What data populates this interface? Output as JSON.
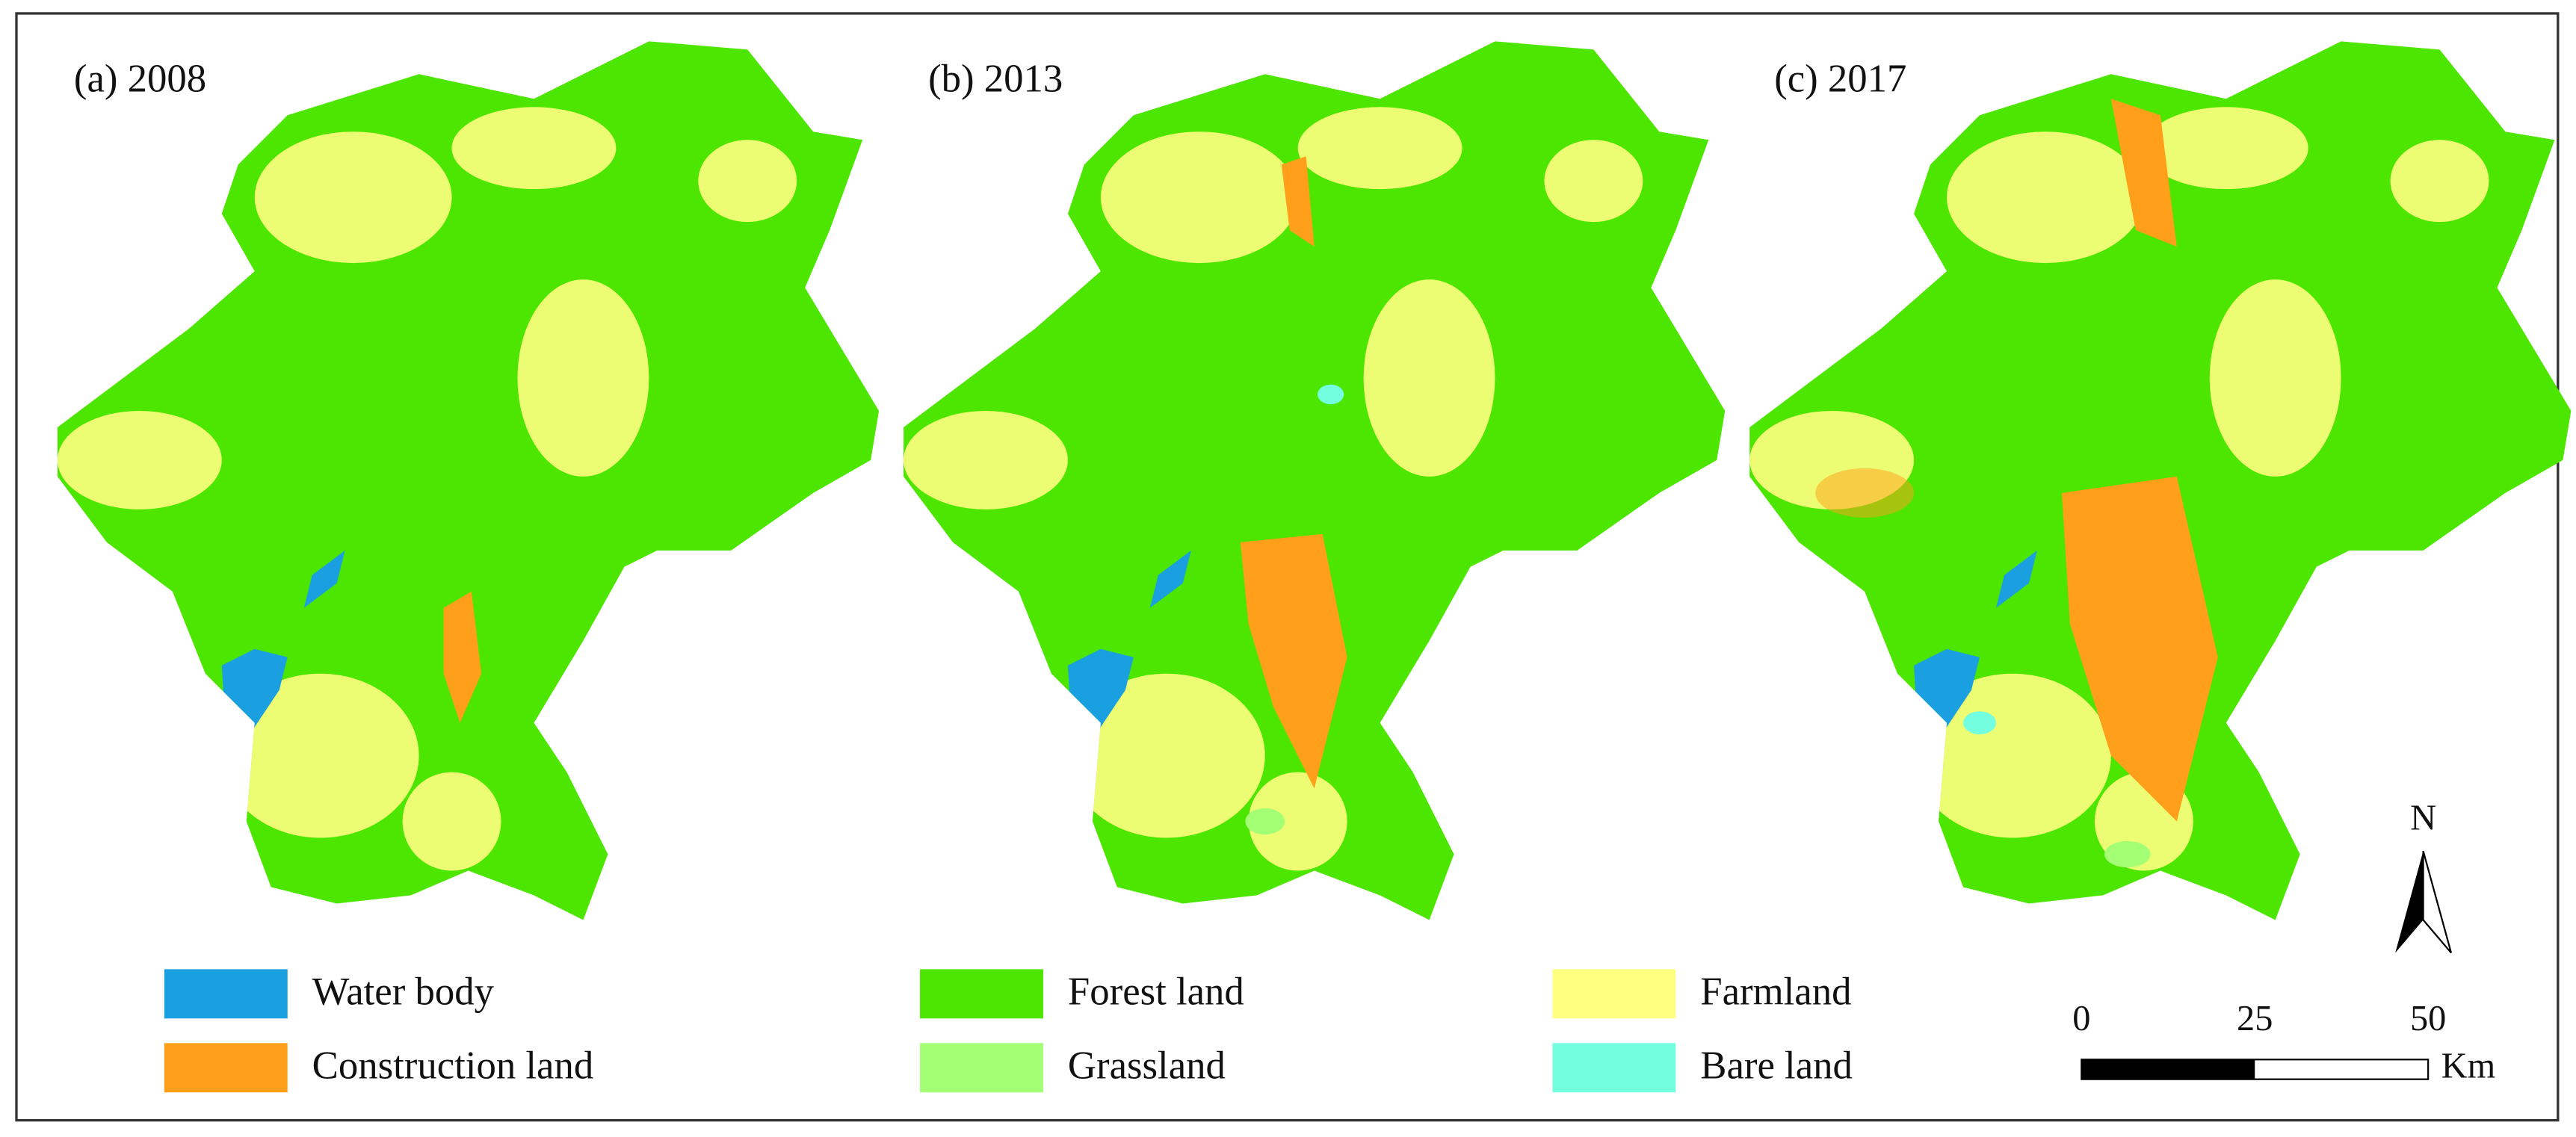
{
  "panels": [
    {
      "label": "(a) 2008"
    },
    {
      "label": "(b) 2013"
    },
    {
      "label": "(c) 2017"
    }
  ],
  "legend": [
    {
      "label": "Water body",
      "color": "#1aa0e0"
    },
    {
      "label": "Construction land",
      "color": "#ff9f1a"
    },
    {
      "label": "Forest land",
      "color": "#4ce600"
    },
    {
      "label": "Grassland",
      "color": "#a3ff73"
    },
    {
      "label": "Farmland",
      "color": "#ffff80"
    },
    {
      "label": "Bare land",
      "color": "#73ffdf"
    }
  ],
  "north_arrow": {
    "label": "N"
  },
  "scale_bar": {
    "ticks": [
      0,
      25,
      50
    ],
    "unit": "Km"
  }
}
